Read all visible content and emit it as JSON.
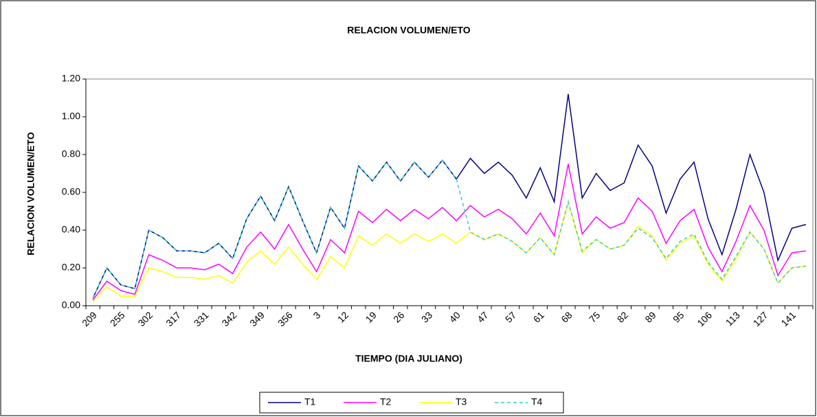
{
  "chart_data": {
    "type": "line",
    "title": "RELACION VOLUMEN/ETO",
    "x_label": "TIEMPO (DIA JULIANO)",
    "y_label": "RELACION VOLUMEN/ETO",
    "categories": [
      "209",
      null,
      "255",
      null,
      "302",
      null,
      "317",
      null,
      "331",
      null,
      "342",
      null,
      "349",
      null,
      "356",
      null,
      "3",
      null,
      "12",
      null,
      "19",
      null,
      "26",
      null,
      "33",
      null,
      "40",
      null,
      "47",
      null,
      "57",
      null,
      "61",
      null,
      "68",
      null,
      "75",
      null,
      "82",
      null,
      "89",
      null,
      "95",
      null,
      "106",
      null,
      "113",
      null,
      "127",
      null,
      "141",
      null
    ],
    "series": [
      {
        "name": "T1",
        "color": "#000080",
        "line_style": "solid",
        "values": [
          0.04,
          0.2,
          0.11,
          0.09,
          0.4,
          0.36,
          0.29,
          0.29,
          0.28,
          0.33,
          0.25,
          0.46,
          0.58,
          0.45,
          0.63,
          0.45,
          0.28,
          0.52,
          0.41,
          0.74,
          0.66,
          0.76,
          0.66,
          0.76,
          0.68,
          0.77,
          0.67,
          0.78,
          0.7,
          0.76,
          0.69,
          0.57,
          0.73,
          0.55,
          1.12,
          0.57,
          0.7,
          0.61,
          0.65,
          0.85,
          0.74,
          0.49,
          0.67,
          0.76,
          0.46,
          0.27,
          0.51,
          0.8,
          0.6,
          0.24,
          0.41,
          0.43
        ]
      },
      {
        "name": "T2",
        "color": "#FF00FF",
        "line_style": "solid",
        "values": [
          0.03,
          0.13,
          0.08,
          0.06,
          0.27,
          0.24,
          0.2,
          0.2,
          0.19,
          0.22,
          0.17,
          0.31,
          0.39,
          0.3,
          0.43,
          0.3,
          0.18,
          0.35,
          0.28,
          0.5,
          0.44,
          0.51,
          0.45,
          0.51,
          0.46,
          0.52,
          0.45,
          0.53,
          0.47,
          0.51,
          0.46,
          0.38,
          0.49,
          0.37,
          0.75,
          0.38,
          0.47,
          0.41,
          0.44,
          0.57,
          0.5,
          0.33,
          0.45,
          0.51,
          0.31,
          0.18,
          0.34,
          0.53,
          0.4,
          0.16,
          0.28,
          0.29
        ]
      },
      {
        "name": "T3",
        "color": "#FFFF00",
        "line_style": "solid",
        "values": [
          0.02,
          0.1,
          0.05,
          0.05,
          0.2,
          0.18,
          0.15,
          0.15,
          0.14,
          0.16,
          0.12,
          0.23,
          0.29,
          0.22,
          0.31,
          0.22,
          0.14,
          0.26,
          0.2,
          0.37,
          0.32,
          0.38,
          0.33,
          0.38,
          0.34,
          0.38,
          0.33,
          0.39,
          0.35,
          0.38,
          0.34,
          0.28,
          0.36,
          0.27,
          0.55,
          0.28,
          0.35,
          0.3,
          0.32,
          0.42,
          0.37,
          0.24,
          0.33,
          0.37,
          0.22,
          0.13,
          0.25,
          0.39,
          0.3,
          0.12,
          0.2,
          0.21
        ]
      },
      {
        "name": "T4",
        "color": "#33CCCC",
        "line_style": "dashed",
        "values": [
          0.04,
          0.2,
          0.11,
          0.09,
          0.4,
          0.36,
          0.29,
          0.29,
          0.28,
          0.33,
          0.25,
          0.46,
          0.58,
          0.45,
          0.63,
          0.45,
          0.28,
          0.52,
          0.41,
          0.74,
          0.66,
          0.76,
          0.66,
          0.76,
          0.68,
          0.77,
          0.67,
          0.39,
          0.35,
          0.38,
          0.34,
          0.28,
          0.36,
          0.27,
          0.55,
          0.29,
          0.35,
          0.3,
          0.32,
          0.41,
          0.36,
          0.25,
          0.34,
          0.38,
          0.23,
          0.14,
          0.26,
          0.39,
          0.3,
          0.12,
          0.2,
          0.21
        ]
      }
    ],
    "ylim": [
      0,
      1.2
    ],
    "yticks": [
      {
        "value": 0,
        "label": "0.00"
      },
      {
        "value": 0.2,
        "label": "0.20"
      },
      {
        "value": 0.4,
        "label": "0.40"
      },
      {
        "value": 0.6,
        "label": "0.60"
      },
      {
        "value": 0.8,
        "label": "0.80"
      },
      {
        "value": 1.0,
        "label": "1.00"
      },
      {
        "value": 1.2,
        "label": "1.20"
      }
    ],
    "grid": false,
    "legend": "bottom"
  }
}
